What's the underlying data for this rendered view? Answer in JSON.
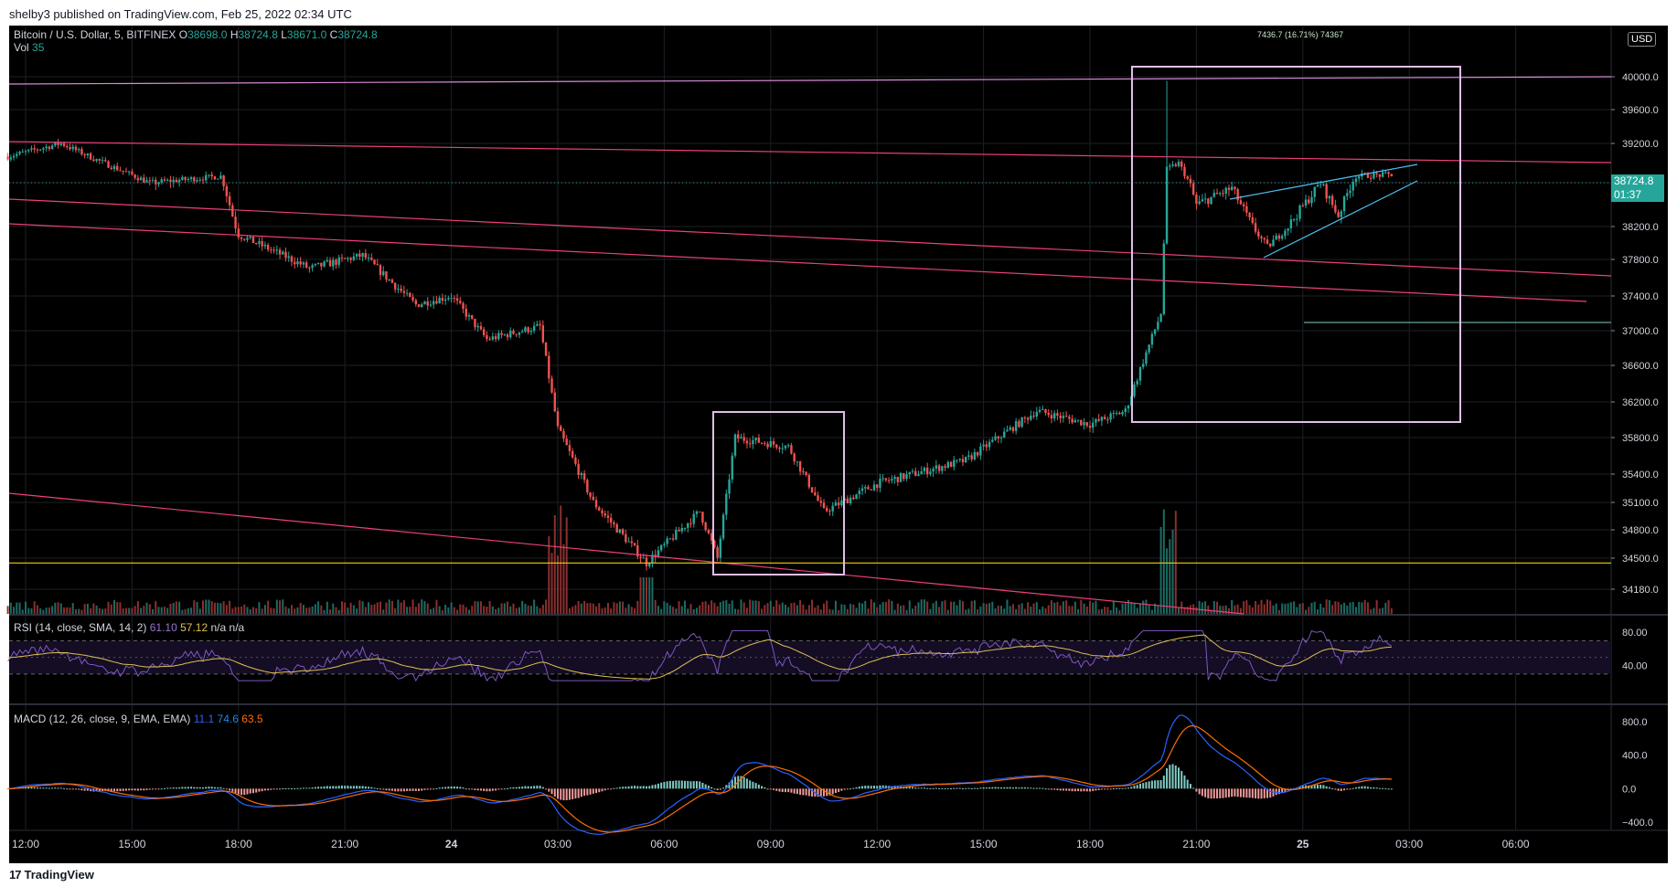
{
  "header": {
    "published": "shelby3 published on TradingView.com, Feb 25, 2022 02:34 UTC"
  },
  "footer": {
    "brand": "TradingView",
    "logo_mark": "17"
  },
  "main_legend": {
    "symbol": "Bitcoin / U.S. Dollar, 5, BITFINEX",
    "o_label": "O",
    "o": "38698.0",
    "h_label": "H",
    "h": "38724.8",
    "l_label": "L",
    "l": "38671.0",
    "c_label": "C",
    "c": "38724.8",
    "vol_label": "Vol",
    "vol": "35"
  },
  "rsi_legend": {
    "name": "RSI (14, close, SMA, 14, 2)",
    "v1": "61.10",
    "v2": "57.12",
    "v3": "n/a",
    "v4": "n/a"
  },
  "macd_legend": {
    "name": "MACD (12, 26, close, 9, EMA, EMA)",
    "v1": "11.1",
    "v2": "74.6",
    "v3": "63.5"
  },
  "currency_button": "USD",
  "last_price": {
    "price": "38724.8",
    "countdown": "01:37"
  },
  "measure_label": "7436.7 (16.71%) 74367",
  "colors": {
    "up": "#26a69a",
    "down": "#ef5350",
    "up_wick": "#26a69a",
    "rsi": "#7e57c2",
    "rsi_ma": "#e0c050",
    "macd": "#2962ff",
    "signal": "#ff6d00",
    "rect": "#e1bee7",
    "trend": "#ec407a",
    "support": "#f0d000"
  },
  "chart_data": {
    "type": "candlestick",
    "price_axis": {
      "ticks": [
        34180.0,
        34500.0,
        34800.0,
        35100.0,
        35400.0,
        35800.0,
        36200.0,
        36600.0,
        37000.0,
        37400.0,
        37800.0,
        38200.0,
        38600.0,
        39200.0,
        39600.0,
        40000.0
      ],
      "tick_labels": [
        "34180.0",
        "34500.0",
        "34800.0",
        "35100.0",
        "35400.0",
        "35800.0",
        "36200.0",
        "36600.0",
        "37000.0",
        "37400.0",
        "37800.0",
        "38200.0",
        "38600.0",
        "39200.0",
        "39600.0",
        "40000.0"
      ]
    },
    "time_axis": {
      "labels": [
        "12:00",
        "15:00",
        "18:00",
        "21:00",
        "24",
        "03:00",
        "06:00",
        "09:00",
        "12:00",
        "15:00",
        "18:00",
        "21:00",
        "25",
        "03:00",
        "06:00"
      ]
    },
    "rsi_axis": {
      "labels": [
        "80.00",
        "40.00"
      ]
    },
    "macd_axis": {
      "labels": [
        "800.0",
        "400.0",
        "0.0",
        "−400.0"
      ]
    },
    "price_path_keypoints": [
      {
        "time": "11:30",
        "price": 39000
      },
      {
        "time": "13:00",
        "price": 39200
      },
      {
        "time": "14:00",
        "price": 38950
      },
      {
        "time": "15:30",
        "price": 38600
      },
      {
        "time": "17:30",
        "price": 38700
      },
      {
        "time": "18:00",
        "price": 38100
      },
      {
        "time": "20:00",
        "price": 37700
      },
      {
        "time": "21:30",
        "price": 37850
      },
      {
        "time": "23:00",
        "price": 37300
      },
      {
        "time": "00:00",
        "price": 37400
      },
      {
        "time": "01:00",
        "price": 36900
      },
      {
        "time": "02:30",
        "price": 37050
      },
      {
        "time": "03:00",
        "price": 35900
      },
      {
        "time": "04:00",
        "price": 35100
      },
      {
        "time": "05:30",
        "price": 34450
      },
      {
        "time": "07:00",
        "price": 35000
      },
      {
        "time": "07:30",
        "price": 34500
      },
      {
        "time": "08:00",
        "price": 35800
      },
      {
        "time": "09:30",
        "price": 35700
      },
      {
        "time": "10:30",
        "price": 35000
      },
      {
        "time": "12:00",
        "price": 35300
      },
      {
        "time": "14:30",
        "price": 35550
      },
      {
        "time": "16:30",
        "price": 36100
      },
      {
        "time": "18:00",
        "price": 35950
      },
      {
        "time": "19:00",
        "price": 36100
      },
      {
        "time": "20:00",
        "price": 37200
      },
      {
        "time": "20:10",
        "price": 38800
      },
      {
        "time": "20:30",
        "price": 38900
      },
      {
        "time": "21:00",
        "price": 38400
      },
      {
        "time": "22:00",
        "price": 38550
      },
      {
        "time": "23:00",
        "price": 37950
      },
      {
        "time": "00:30",
        "price": 38600
      },
      {
        "time": "01:00",
        "price": 38300
      },
      {
        "time": "01:30",
        "price": 38700
      },
      {
        "time": "02:34",
        "price": 38724.8
      }
    ],
    "support_level": 34450,
    "target_level": 37100
  }
}
